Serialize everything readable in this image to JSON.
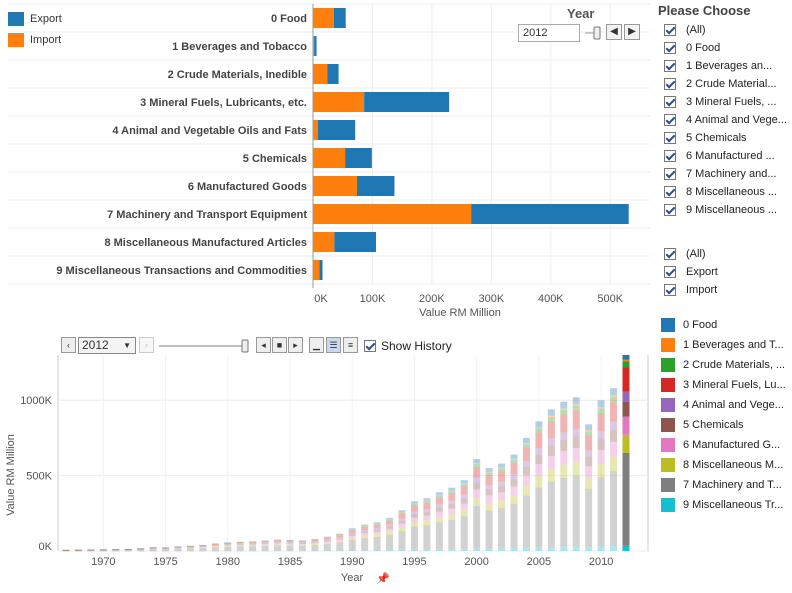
{
  "legend": [
    {
      "label": "Export",
      "color": "#1f77b4"
    },
    {
      "label": "Import",
      "color": "#ff7f0e"
    }
  ],
  "year_filter": {
    "title": "Year",
    "value": "2012",
    "prev_icon": "chevron-left-icon",
    "next_icon": "chevron-right-icon"
  },
  "right_panel": {
    "title": "Please Choose",
    "categories": [
      {
        "label": "(All)"
      },
      {
        "label": "0   Food"
      },
      {
        "label": "1   Beverages an..."
      },
      {
        "label": "2   Crude Material..."
      },
      {
        "label": "3   Mineral Fuels, ..."
      },
      {
        "label": "4   Animal and Vege..."
      },
      {
        "label": "5   Chemicals"
      },
      {
        "label": "6   Manufactured ..."
      },
      {
        "label": "7   Machinery and..."
      },
      {
        "label": "8   Miscellaneous ..."
      },
      {
        "label": "9   Miscellaneous ..."
      }
    ],
    "trade": [
      {
        "label": "(All)"
      },
      {
        "label": "Export"
      },
      {
        "label": "Import"
      }
    ],
    "color_legend": [
      {
        "label": "0   Food",
        "color": "#1f77b4"
      },
      {
        "label": "1   Beverages and T...",
        "color": "#ff7f0e"
      },
      {
        "label": "2   Crude Materials, ...",
        "color": "#2ca02c"
      },
      {
        "label": "3   Mineral Fuels, Lu...",
        "color": "#d62728"
      },
      {
        "label": "4   Animal and Vege...",
        "color": "#9467bd"
      },
      {
        "label": "5   Chemicals",
        "color": "#8c564b"
      },
      {
        "label": "6   Manufactured G...",
        "color": "#e377c2"
      },
      {
        "label": "8   Miscellaneous M...",
        "color": "#bcbd22"
      },
      {
        "label": "7   Machinery and T...",
        "color": "#7f7f7f"
      },
      {
        "label": "9   Miscellaneous Tr...",
        "color": "#17becf"
      }
    ]
  },
  "toolbar": {
    "year_select": "2012",
    "dropdown_icon": "chevron-down-icon",
    "show_history_label": "Show History"
  },
  "chart_data": [
    {
      "type": "bar",
      "orientation": "horizontal",
      "stacked": true,
      "xlabel": "Value RM Million",
      "xlim": [
        0,
        550000
      ],
      "xticks": [
        "0K",
        "100K",
        "200K",
        "300K",
        "400K",
        "500K"
      ],
      "categories": [
        "0   Food",
        "1   Beverages and Tobacco",
        "2   Crude Materials, Inedible",
        "3   Mineral Fuels, Lubricants, etc.",
        "4   Animal and Vegetable Oils and Fats",
        "5   Chemicals",
        "6   Manufactured Goods",
        "7   Machinery and Transport Equipment",
        "8   Miscellaneous Manufactured Articles",
        "9   Miscellaneous Transactions and Commodities"
      ],
      "series": [
        {
          "name": "Import",
          "color": "#ff7f0e",
          "values": [
            35000,
            2000,
            24000,
            86000,
            8000,
            54000,
            74000,
            266000,
            36000,
            11000
          ]
        },
        {
          "name": "Export",
          "color": "#1f77b4",
          "values": [
            20000,
            4000,
            19000,
            143000,
            63000,
            45000,
            63000,
            265000,
            70000,
            5000
          ]
        }
      ]
    },
    {
      "type": "bar",
      "stacked": true,
      "xlabel": "Year",
      "ylabel": "Value RM Million",
      "ylim": [
        0,
        1300000
      ],
      "yticks": [
        "0K",
        "500K",
        "1000K"
      ],
      "xticks": [
        "1970",
        "1975",
        "1980",
        "1985",
        "1990",
        "1995",
        "2000",
        "2005",
        "2010"
      ],
      "years": [
        1967,
        1968,
        1969,
        1970,
        1971,
        1972,
        1973,
        1974,
        1975,
        1976,
        1977,
        1978,
        1979,
        1980,
        1981,
        1982,
        1983,
        1984,
        1985,
        1986,
        1987,
        1988,
        1989,
        1990,
        1991,
        1992,
        1993,
        1994,
        1995,
        1996,
        1997,
        1998,
        1999,
        2000,
        2001,
        2002,
        2003,
        2004,
        2005,
        2006,
        2007,
        2008,
        2009,
        2010,
        2011,
        2012
      ],
      "totals": [
        8000,
        9000,
        10000,
        11000,
        12000,
        14000,
        18000,
        25000,
        24000,
        30000,
        35000,
        40000,
        50000,
        57000,
        62000,
        64000,
        70000,
        76000,
        73000,
        71000,
        80000,
        95000,
        115000,
        150000,
        175000,
        190000,
        220000,
        270000,
        330000,
        350000,
        390000,
        420000,
        470000,
        610000,
        550000,
        580000,
        640000,
        750000,
        860000,
        940000,
        990000,
        1020000,
        840000,
        1000000,
        1080000,
        1330000
      ],
      "history": true
    }
  ]
}
